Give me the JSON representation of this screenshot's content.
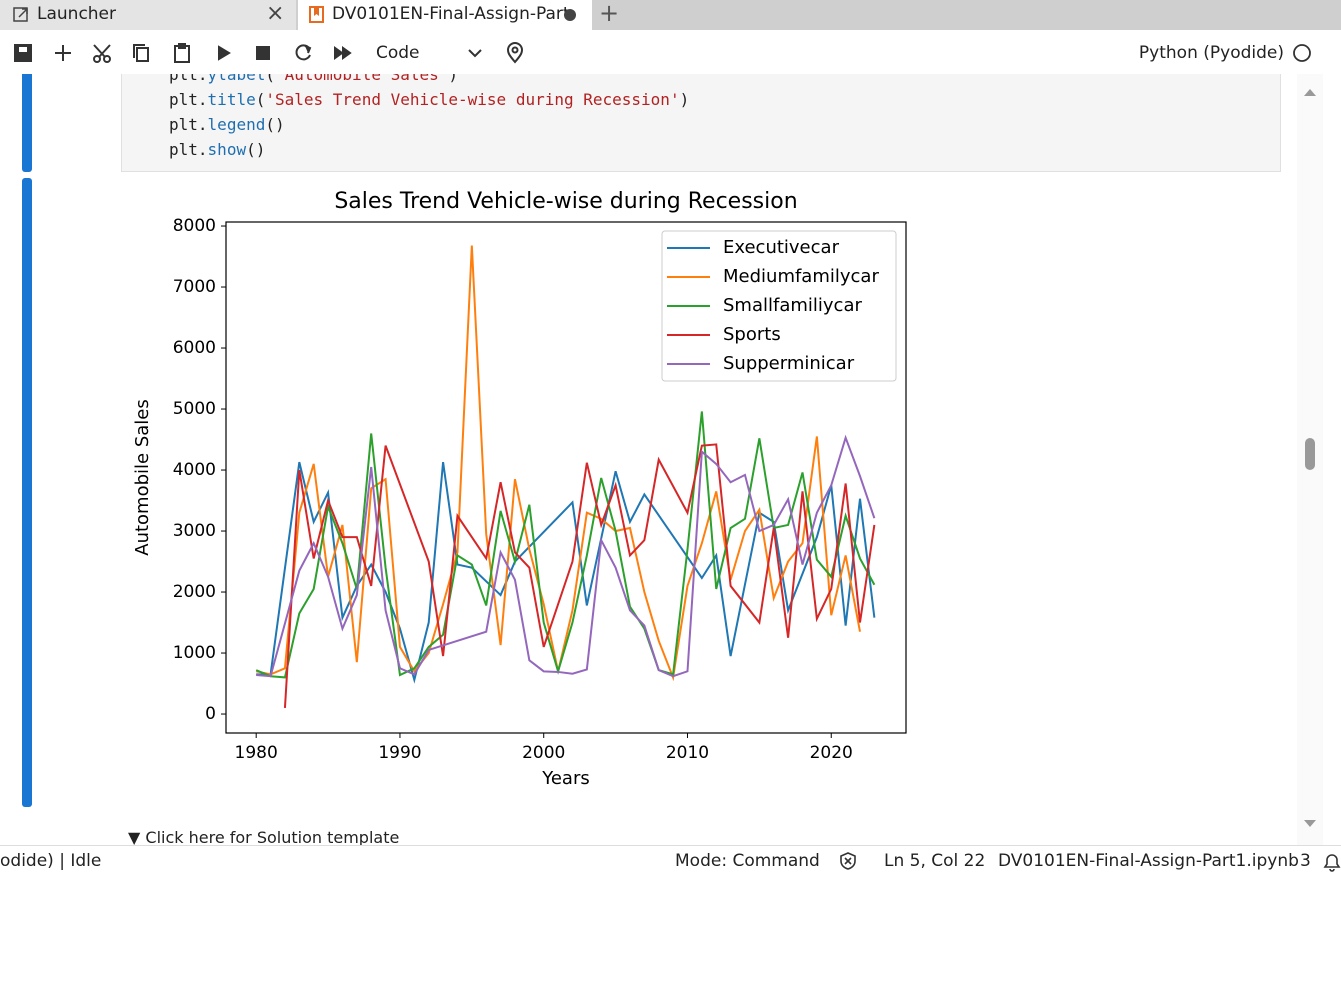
{
  "tabs": {
    "launcher": "Launcher",
    "notebook": "DV0101EN-Final-Assign-Part"
  },
  "toolbar": {
    "cell_type": "Code",
    "kernel": "Python (Pyodide)"
  },
  "code": {
    "lines": [
      [
        "plt",
        ".",
        "ylabel",
        "(",
        "'Automobile Sales'",
        ")"
      ],
      [
        "plt",
        ".",
        "title",
        "(",
        "'Sales Trend Vehicle-wise during Recession'",
        ")"
      ],
      [
        "plt",
        ".",
        "legend",
        "()"
      ],
      [
        "plt",
        ".",
        "show",
        "()"
      ]
    ]
  },
  "solution_toggle": "▼ Click here for Solution template",
  "status": {
    "kernel_state": "odide) | Idle",
    "mode": "Mode: Command",
    "cursor": "Ln 5, Col 22",
    "file": "DV0101EN-Final-Assign-Part1.ipynb",
    "count": "3"
  },
  "chart_data": {
    "type": "line",
    "title": "Sales Trend Vehicle-wise during Recession",
    "x_label": "Years",
    "y_label": "Automobile Sales",
    "xlim": [
      1977.9,
      2025.2
    ],
    "ylim": [
      -311,
      8066
    ],
    "xticks": [
      1980,
      1990,
      2000,
      2010,
      2020
    ],
    "yticks": [
      0,
      1000,
      2000,
      3000,
      4000,
      5000,
      6000,
      7000,
      8000
    ],
    "legend": "upper right",
    "grid": false,
    "series": [
      {
        "name": "Executivecar",
        "color": "#1f77b4",
        "x": [
          1980,
          1981,
          1983,
          1984,
          1985,
          1986,
          1987,
          1988,
          1989,
          1990,
          1991,
          1992,
          1993,
          1994,
          1995,
          1997,
          1998,
          2002,
          2003,
          2005,
          2006,
          2007,
          2011,
          2012,
          2013,
          2015,
          2016,
          2017,
          2019,
          2020,
          2021,
          2022,
          2023
        ],
        "values": [
          650,
          650,
          4130,
          3150,
          3630,
          1580,
          2100,
          2450,
          2000,
          1400,
          560,
          1500,
          4130,
          2450,
          2400,
          1950,
          2500,
          3470,
          1780,
          3980,
          3150,
          3600,
          2230,
          2600,
          950,
          3300,
          3150,
          1700,
          2900,
          3750,
          1450,
          3530,
          1580
        ]
      },
      {
        "name": "Mediumfamilycar",
        "color": "#ff7f0e",
        "x": [
          1980,
          1981,
          1982,
          1983,
          1984,
          1985,
          1986,
          1987,
          1988,
          1989,
          1990,
          1991,
          1992,
          1993,
          1994,
          1995,
          1996,
          1997,
          1998,
          1999,
          2000,
          2001,
          2002,
          2003,
          2004,
          2005,
          2006,
          2007,
          2008,
          2009,
          2010,
          2011,
          2012,
          2013,
          2014,
          2015,
          2016,
          2017,
          2018,
          2019,
          2020,
          2021,
          2022
        ],
        "values": [
          700,
          650,
          750,
          3300,
          4100,
          2250,
          3100,
          850,
          3700,
          3850,
          1100,
          700,
          1000,
          1800,
          2650,
          7680,
          2950,
          1130,
          3850,
          2700,
          1800,
          700,
          1700,
          3300,
          3200,
          3000,
          3050,
          2000,
          1200,
          600,
          2100,
          2800,
          3650,
          2200,
          3000,
          3350,
          1900,
          2500,
          2800,
          4550,
          1620,
          2600,
          1350
        ]
      },
      {
        "name": "Smallfamiliycar",
        "color": "#2ca02c",
        "x": [
          1980,
          1981,
          1982,
          1983,
          1984,
          1985,
          1986,
          1987,
          1988,
          1989,
          1990,
          1991,
          1992,
          1993,
          1994,
          1995,
          1996,
          1997,
          1998,
          1999,
          2000,
          2001,
          2002,
          2003,
          2004,
          2005,
          2006,
          2007,
          2008,
          2009,
          2010,
          2011,
          2012,
          2013,
          2014,
          2015,
          2016,
          2017,
          2018,
          2019,
          2020,
          2021,
          2022,
          2023
        ],
        "values": [
          720,
          620,
          600,
          1650,
          2050,
          3400,
          2800,
          2050,
          4600,
          2400,
          640,
          750,
          1100,
          1300,
          2600,
          2450,
          1780,
          3330,
          2500,
          3430,
          1500,
          700,
          1500,
          2600,
          3870,
          3000,
          1760,
          1400,
          720,
          650,
          2700,
          4960,
          2050,
          3050,
          3200,
          4520,
          3050,
          3100,
          3960,
          2530,
          2250,
          3250,
          2550,
          2120
        ]
      },
      {
        "name": "Sports",
        "color": "#d62728",
        "x": [
          1982,
          1983,
          1984,
          1985,
          1986,
          1987,
          1988,
          1989,
          1992,
          1993,
          1994,
          1996,
          1997,
          1998,
          1999,
          2000,
          2002,
          2003,
          2004,
          2005,
          2006,
          2007,
          2008,
          2010,
          2011,
          2012,
          2013,
          2015,
          2016,
          2017,
          2018,
          2019,
          2020,
          2021,
          2022,
          2023
        ],
        "values": [
          100,
          4000,
          2550,
          3500,
          2900,
          2900,
          2100,
          4400,
          2500,
          950,
          3250,
          2550,
          3800,
          2650,
          2400,
          1100,
          2500,
          4120,
          3100,
          3750,
          2600,
          2850,
          4170,
          3300,
          4400,
          4420,
          2100,
          1500,
          3050,
          1250,
          3650,
          1560,
          2050,
          3780,
          1500,
          3100
        ]
      },
      {
        "name": "Supperminicar",
        "color": "#9467bd",
        "x": [
          1980,
          1981,
          1983,
          1984,
          1985,
          1986,
          1987,
          1988,
          1989,
          1990,
          1991,
          1992,
          1996,
          1997,
          1998,
          1999,
          2000,
          2001,
          2002,
          2003,
          2004,
          2005,
          2006,
          2007,
          2008,
          2009,
          2010,
          2011,
          2012,
          2013,
          2014,
          2015,
          2016,
          2017,
          2018,
          2019,
          2020,
          2021,
          2022,
          2023
        ],
        "values": [
          640,
          620,
          2350,
          2800,
          2250,
          1400,
          1950,
          4050,
          1700,
          750,
          650,
          1050,
          1350,
          2650,
          2200,
          880,
          700,
          690,
          660,
          730,
          2850,
          2400,
          1700,
          1450,
          720,
          620,
          700,
          4300,
          4100,
          3800,
          3920,
          3000,
          3100,
          3520,
          2450,
          3300,
          3750,
          4530,
          3900,
          3210
        ]
      }
    ]
  }
}
